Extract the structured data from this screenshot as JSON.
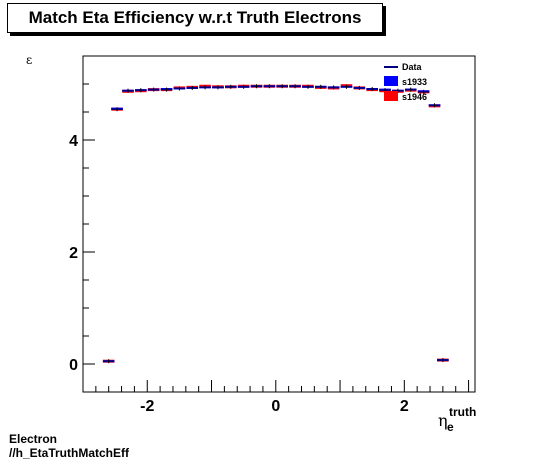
{
  "title": "Match Eta Efficiency w.r.t Truth Electrons",
  "footer": {
    "line1": "Electron",
    "line2": "//h_EtaTruthMatchEff"
  },
  "chart_data": {
    "type": "scatter",
    "title": "Match Eta Efficiency w.r.t Truth Electrons",
    "ylabel": "ε",
    "xlabel": "η_e^truth",
    "xlim": [
      -3.0,
      3.1
    ],
    "ylim": [
      -0.5,
      5.5
    ],
    "xticks": [
      -2,
      0,
      2
    ],
    "yticks": [
      0,
      2,
      4
    ],
    "legend_position": "top-right",
    "series": [
      {
        "name": "Data",
        "color": "#000080",
        "style": "line",
        "x": [
          -2.6,
          -2.47,
          -2.3,
          -2.1,
          -1.9,
          -1.7,
          -1.5,
          -1.3,
          -1.1,
          -0.9,
          -0.7,
          -0.5,
          -0.3,
          -0.1,
          0.1,
          0.3,
          0.5,
          0.7,
          0.9,
          1.1,
          1.3,
          1.5,
          1.7,
          1.9,
          2.1,
          2.3,
          2.47,
          2.6
        ],
        "y": [
          0.05,
          4.55,
          4.88,
          4.89,
          4.9,
          4.9,
          4.92,
          4.93,
          4.94,
          4.94,
          4.95,
          4.95,
          4.96,
          4.96,
          4.96,
          4.96,
          4.95,
          4.95,
          4.94,
          4.95,
          4.93,
          4.91,
          4.89,
          4.88,
          4.9,
          4.86,
          4.62,
          0.07
        ]
      },
      {
        "name": "s1933",
        "color": "#0000ff",
        "style": "box",
        "x": [
          -2.6,
          -2.47,
          -2.3,
          -2.1,
          -1.9,
          -1.7,
          -1.5,
          -1.3,
          -1.1,
          -0.9,
          -0.7,
          -0.5,
          -0.3,
          -0.1,
          0.1,
          0.3,
          0.5,
          0.7,
          0.9,
          1.1,
          1.3,
          1.5,
          1.7,
          1.9,
          2.1,
          2.3,
          2.47,
          2.6
        ],
        "y": [
          0.05,
          4.56,
          4.88,
          4.89,
          4.9,
          4.91,
          4.92,
          4.93,
          4.94,
          4.94,
          4.95,
          4.95,
          4.96,
          4.96,
          4.96,
          4.96,
          4.95,
          4.95,
          4.94,
          4.95,
          4.93,
          4.91,
          4.9,
          4.88,
          4.9,
          4.87,
          4.62,
          0.07
        ]
      },
      {
        "name": "s1946",
        "color": "#ff0000",
        "style": "box",
        "x": [
          -2.6,
          -2.47,
          -2.3,
          -2.1,
          -1.9,
          -1.7,
          -1.5,
          -1.3,
          -1.1,
          -0.9,
          -0.7,
          -0.5,
          -0.3,
          -0.1,
          0.1,
          0.3,
          0.5,
          0.7,
          0.9,
          1.1,
          1.3,
          1.5,
          1.7,
          1.9,
          2.1,
          2.3,
          2.47,
          2.6
        ],
        "y": [
          0.05,
          4.55,
          4.87,
          4.88,
          4.9,
          4.9,
          4.93,
          4.94,
          4.96,
          4.95,
          4.95,
          4.96,
          4.96,
          4.96,
          4.96,
          4.96,
          4.96,
          4.94,
          4.93,
          4.97,
          4.93,
          4.9,
          4.88,
          4.87,
          4.89,
          4.86,
          4.61,
          0.07
        ]
      }
    ]
  }
}
